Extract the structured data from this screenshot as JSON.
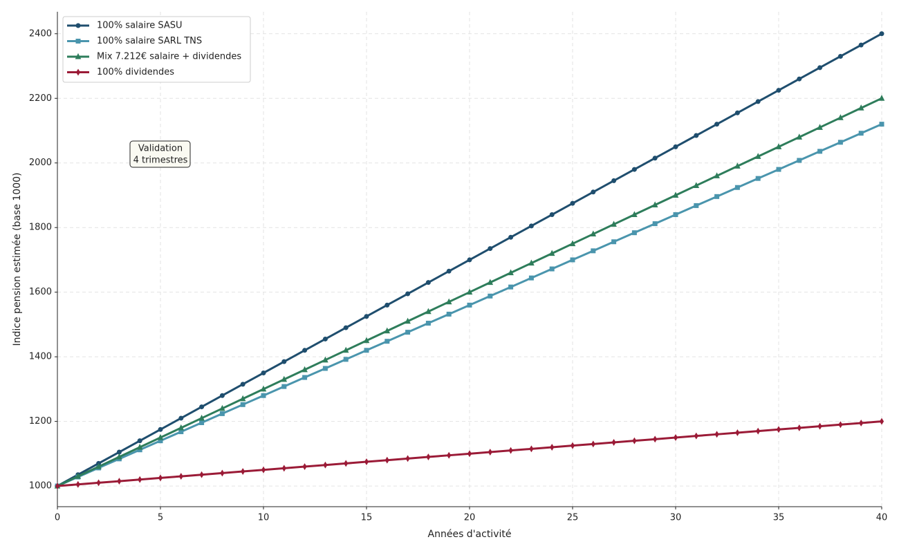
{
  "chart_data": {
    "type": "line",
    "xlabel": "Années d'activité",
    "ylabel": "Indice pension estimée (base 1000)",
    "annotation": [
      "Validation",
      "4 trimestres"
    ],
    "x": [
      0,
      1,
      2,
      3,
      4,
      5,
      6,
      7,
      8,
      9,
      10,
      11,
      12,
      13,
      14,
      15,
      16,
      17,
      18,
      19,
      20,
      21,
      22,
      23,
      24,
      25,
      26,
      27,
      28,
      29,
      30,
      31,
      32,
      33,
      34,
      35,
      36,
      37,
      38,
      39,
      40
    ],
    "series": [
      {
        "name": "100% salaire SASU",
        "color": "#1f4e6e",
        "marker": "circle",
        "values": [
          1000,
          1035,
          1070,
          1105,
          1140,
          1175,
          1210,
          1245,
          1280,
          1315,
          1350,
          1385,
          1420,
          1455,
          1490,
          1525,
          1560,
          1595,
          1630,
          1665,
          1700,
          1735,
          1770,
          1805,
          1840,
          1875,
          1910,
          1945,
          1980,
          2015,
          2050,
          2085,
          2120,
          2155,
          2190,
          2225,
          2260,
          2295,
          2330,
          2365,
          2400
        ]
      },
      {
        "name": "100% salaire SARL TNS",
        "color": "#4a95ad",
        "marker": "square",
        "values": [
          1000,
          1028,
          1056,
          1084,
          1112,
          1140,
          1168,
          1196,
          1224,
          1252,
          1280,
          1308,
          1336,
          1364,
          1392,
          1420,
          1448,
          1476,
          1504,
          1532,
          1560,
          1588,
          1616,
          1644,
          1672,
          1700,
          1728,
          1756,
          1784,
          1812,
          1840,
          1868,
          1896,
          1924,
          1952,
          1980,
          2008,
          2036,
          2064,
          2092,
          2120
        ]
      },
      {
        "name": "Mix 7.212€ salaire + dividendes",
        "color": "#2e7d5b",
        "marker": "triangle",
        "values": [
          1000,
          1030,
          1060,
          1090,
          1120,
          1150,
          1180,
          1210,
          1240,
          1270,
          1300,
          1330,
          1360,
          1390,
          1420,
          1450,
          1480,
          1510,
          1540,
          1570,
          1600,
          1630,
          1660,
          1690,
          1720,
          1750,
          1780,
          1810,
          1840,
          1870,
          1900,
          1930,
          1960,
          1990,
          2020,
          2050,
          2080,
          2110,
          2140,
          2170,
          2200
        ]
      },
      {
        "name": "100% dividendes",
        "color": "#9b1b37",
        "marker": "diamond",
        "values": [
          1000,
          1005,
          1010,
          1015,
          1020,
          1025,
          1030,
          1035,
          1040,
          1045,
          1050,
          1055,
          1060,
          1065,
          1070,
          1075,
          1080,
          1085,
          1090,
          1095,
          1100,
          1105,
          1110,
          1115,
          1120,
          1125,
          1130,
          1135,
          1140,
          1145,
          1150,
          1155,
          1160,
          1165,
          1170,
          1175,
          1180,
          1185,
          1190,
          1195,
          1200
        ]
      }
    ],
    "xlim": [
      0,
      40
    ],
    "xticks": [
      0,
      5,
      10,
      15,
      20,
      25,
      30,
      35,
      40
    ],
    "ylim": [
      936,
      2468
    ],
    "yticks": [
      1000,
      1200,
      1400,
      1600,
      1800,
      2000,
      2200,
      2400
    ],
    "grid": true,
    "legend": "upper left"
  }
}
